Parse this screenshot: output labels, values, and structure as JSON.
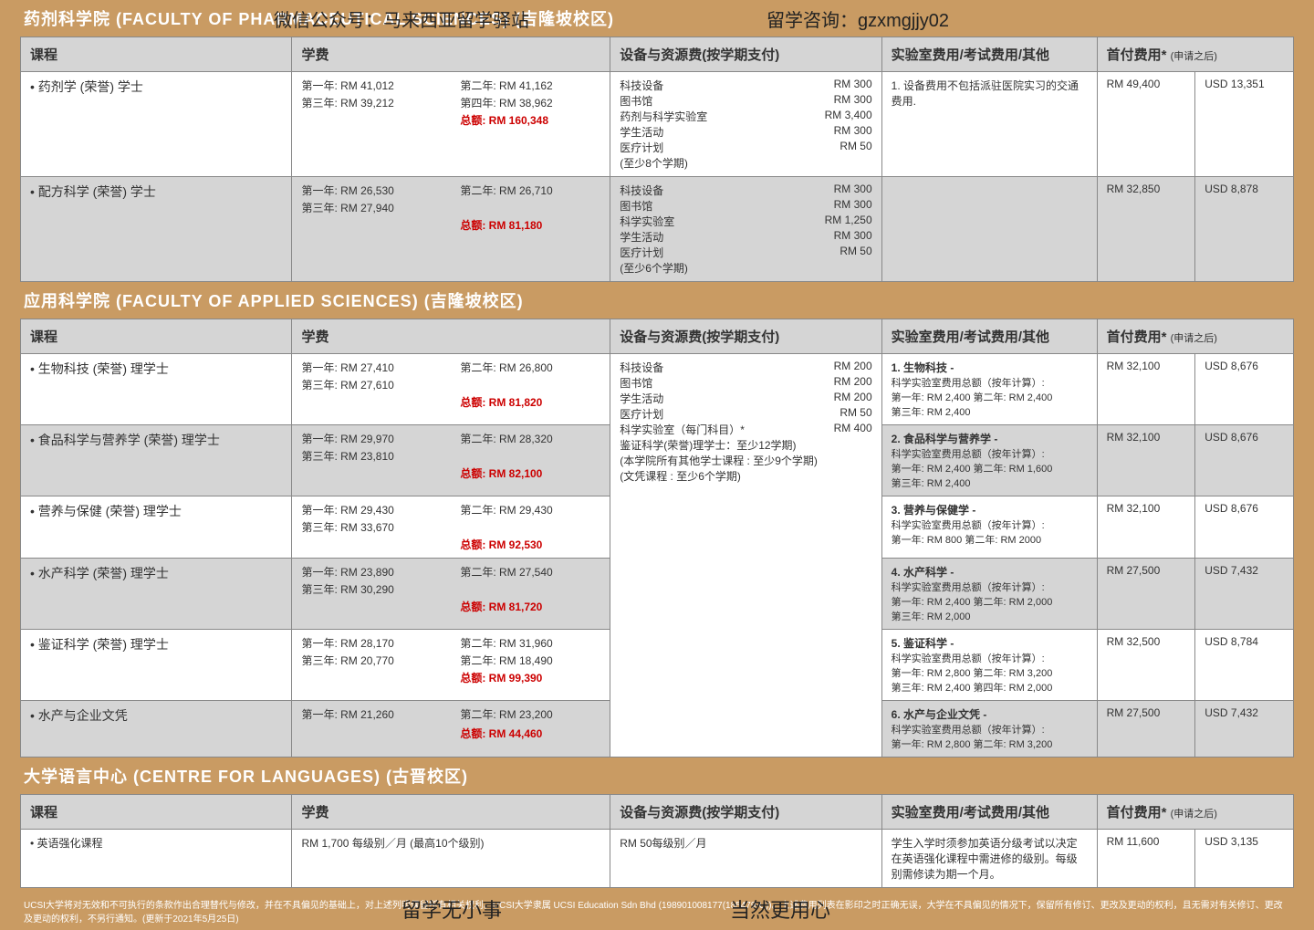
{
  "overlay": {
    "wechat": "微信公众号：马来西亚留学驿站",
    "consult": "留学咨询：gzxmgjjy02",
    "bottom1": "留学无小事",
    "bottom2": "当然更用心"
  },
  "headers": {
    "course": "课程",
    "tuition": "学费",
    "equip": "设备与资源费(按学期支付)",
    "lab": "实验室费用/考试费用/其他",
    "first": "首付费用*",
    "first_sub": "(申请之后)"
  },
  "pharm": {
    "title": "药剂科学院 (FACULTY OF PHARMACEUTICAL SCIENCES) (吉隆坡校区)",
    "rows": [
      {
        "course": "药剂学 (荣誉) 学士",
        "tuition": [
          "第一年: RM 41,012",
          "第二年: RM 41,162",
          "第三年: RM 39,212",
          "第四年: RM 38,962"
        ],
        "total": "总额:   RM 160,348",
        "equip": [
          [
            "科技设备",
            "RM    300"
          ],
          [
            "图书馆",
            "RM    300"
          ],
          [
            "药剂与科学实验室",
            "RM 3,400"
          ],
          [
            "学生活动",
            "RM    300"
          ],
          [
            "医疗计划",
            "RM      50"
          ],
          [
            "(至少8个学期)",
            ""
          ]
        ],
        "lab": "1. 设备费用不包括派驻医院实习的交通费用.",
        "rm": "RM 49,400",
        "usd": "USD 13,351"
      },
      {
        "course": "配方科学 (荣誉) 学士",
        "tuition": [
          "第一年: RM 26,530",
          "第二年: RM 26,710",
          "第三年: RM 27,940",
          ""
        ],
        "total": "总额:   RM 81,180",
        "equip": [
          [
            "科技设备",
            "RM    300"
          ],
          [
            "图书馆",
            "RM    300"
          ],
          [
            "科学实验室",
            "RM 1,250"
          ],
          [
            "学生活动",
            "RM    300"
          ],
          [
            "医疗计划",
            "RM      50"
          ],
          [
            "(至少6个学期)",
            ""
          ]
        ],
        "lab": "",
        "rm": "RM 32,850",
        "usd": "USD 8,878"
      }
    ]
  },
  "applied": {
    "title": "应用科学院 (FACULTY OF APPLIED SCIENCES) (吉隆坡校区)",
    "equip_shared": [
      [
        "科技设备",
        "RM    200"
      ],
      [
        "图书馆",
        "RM    200"
      ],
      [
        "学生活动",
        "RM    200"
      ],
      [
        "医疗计划",
        "RM      50"
      ],
      [
        "科学实验室（每门科目）*",
        "RM    400"
      ],
      [
        "",
        ""
      ],
      [
        "鉴证科学(荣誉)理学士：至少12学期)",
        ""
      ],
      [
        "",
        ""
      ],
      [
        "(本学院所有其他学士课程 : 至少9个学期)",
        ""
      ],
      [
        "",
        ""
      ],
      [
        "(文凭课程 : 至少6个学期)",
        ""
      ]
    ],
    "rows": [
      {
        "course": "生物科技 (荣誉) 理学士",
        "tuition": [
          "第一年: RM 27,410",
          "第二年: RM 26,800",
          "第三年: RM 27,610",
          ""
        ],
        "total": "总额:   RM 81,820",
        "rm": "RM 32,100",
        "usd": "USD  8,676"
      },
      {
        "course": "食品科学与营养学 (荣誉) 理学士",
        "tuition": [
          "第一年: RM 29,970",
          "第二年: RM 28,320",
          "第三年: RM 23,810",
          ""
        ],
        "total": "总额:   RM 82,100",
        "rm": "RM 32,100",
        "usd": "USD  8,676"
      },
      {
        "course": "营养与保健 (荣誉) 理学士",
        "tuition": [
          "第一年: RM 29,430",
          "第二年: RM 29,430",
          "第三年: RM 33,670",
          ""
        ],
        "total": "总额:   RM 92,530",
        "rm": "RM 32,100",
        "usd": "USD  8,676"
      },
      {
        "course": "水产科学 (荣誉) 理学士",
        "tuition": [
          "第一年: RM 23,890",
          "第二年: RM 27,540",
          "第三年: RM 30,290",
          ""
        ],
        "total": "总额:   RM 81,720",
        "rm": "RM 27,500",
        "usd": "USD  7,432"
      },
      {
        "course": "鉴证科学 (荣誉) 理学士",
        "tuition": [
          "第一年: RM 28,170",
          "第二年: RM 31,960",
          "第三年: RM 20,770",
          "第二年: RM 18,490"
        ],
        "total": "总额:   RM 99,390",
        "rm": "RM 32,500",
        "usd": "USD  8,784"
      },
      {
        "course": "水产与企业文凭",
        "tuition": [
          "第一年: RM 21,260",
          "第二年: RM 23,200",
          "",
          ""
        ],
        "total": "总额:   RM 44,460",
        "rm": "RM 27,500",
        "usd": "USD  7,432"
      }
    ],
    "labs": [
      {
        "h": "1. 生物科技 -",
        "l": [
          "科学实验室费用总额（按年计算）:",
          "第一年: RM 2,400    第二年: RM 2,400",
          "第三年: RM 2,400"
        ]
      },
      {
        "h": "2. 食品科学与营养学 -",
        "l": [
          "科学实验室费用总额（按年计算）:",
          "第一年: RM 2,400    第二年: RM 1,600",
          "第三年: RM 2,400"
        ]
      },
      {
        "h": "3. 营养与保健学 -",
        "l": [
          "科学实验室费用总额（按年计算）:",
          "第一年: RM 800       第二年: RM 2000"
        ]
      },
      {
        "h": "4. 水产科学 -",
        "l": [
          "科学实验室费用总额（按年计算）:",
          "第一年: RM 2,400    第二年: RM 2,000",
          "第三年: RM 2,000"
        ]
      },
      {
        "h": "5. 鉴证科学 -",
        "l": [
          "科学实验室费用总额（按年计算）:",
          "第一年: RM 2,800   第二年: RM 3,200",
          "第三年: RM 2,400   第四年: RM 2,000"
        ]
      },
      {
        "h": "6. 水产与企业文凭 -",
        "l": [
          "科学实验室费用总额（按年计算）:",
          "第一年: RM 2,800      第二年: RM 3,200"
        ]
      }
    ]
  },
  "lang": {
    "title": "大学语言中心 (CENTRE FOR LANGUAGES) (古晋校区)",
    "course": "英语强化课程",
    "tuition": "RM 1,700 每级别／月 (最高10个级别)",
    "equip": "RM 50每级别／月",
    "lab": "学生入学时须参加英语分级考试以决定在英语强化课程中需进修的级别。每级别需修读为期一个月。",
    "rm": "RM 11,600",
    "usd": "USD  3,135"
  },
  "footer": "UCSI大学将对无效和不可执行的条款作出合理替代与修改，并在不具偏见的基础上，对上述列明保留所有相关权利。UCSI大学隶属 UCSI Education Sdn Bhd (198901008177(185479-U))。上述费用列表在影印之时正确无误，大学在不具偏见的情况下，保留所有修订、更改及更动的权利，且无需对有关修订、更改及更动的权利，不另行通知。(更新于2021年5月25日)"
}
